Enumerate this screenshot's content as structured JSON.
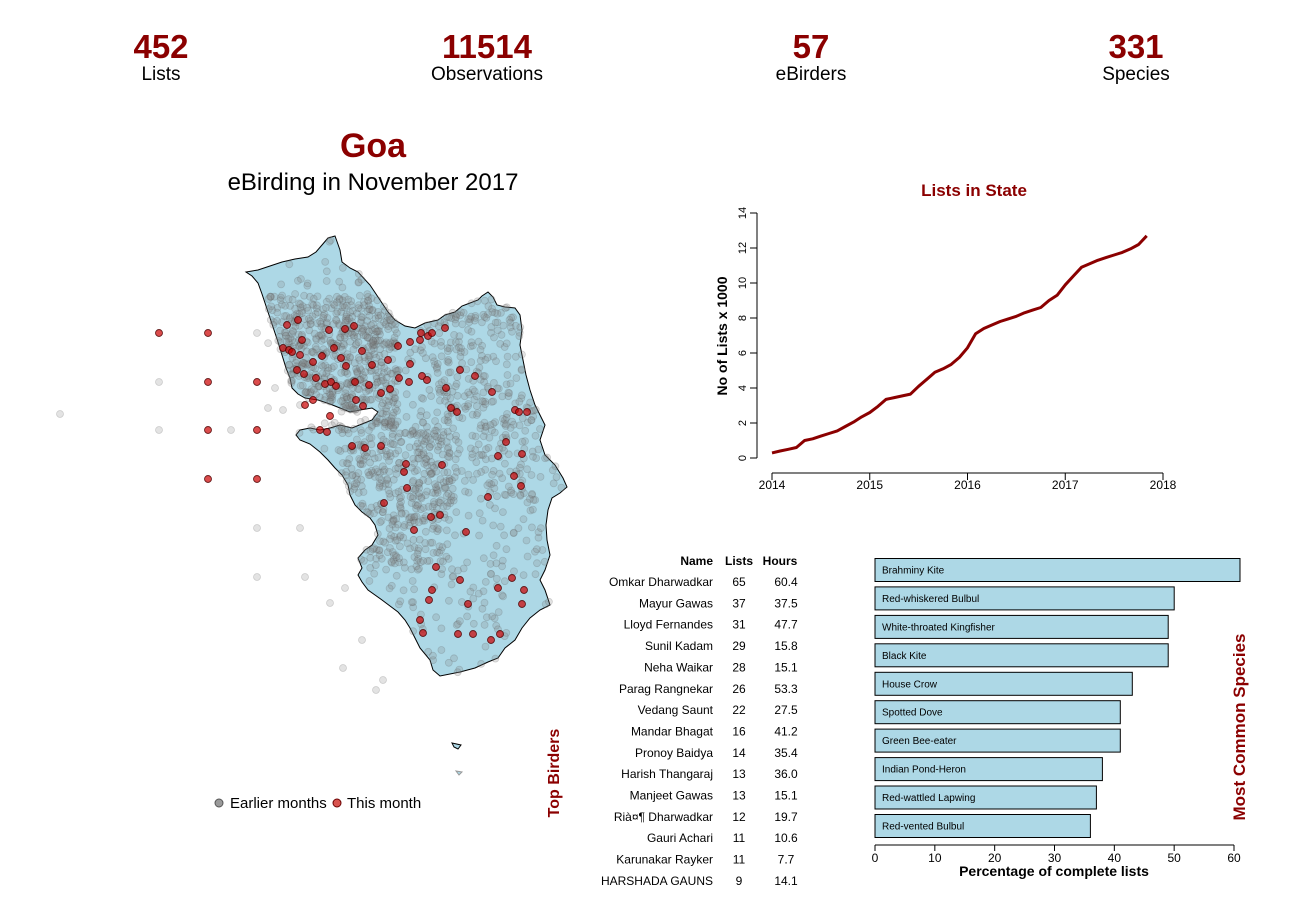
{
  "stats": [
    {
      "value": "452",
      "label": "Lists"
    },
    {
      "value": "11514",
      "label": "Observations"
    },
    {
      "value": "57",
      "label": "eBirders"
    },
    {
      "value": "331",
      "label": "Species"
    }
  ],
  "header": {
    "title": "Goa",
    "subtitle": "eBirding in November 2017"
  },
  "map": {
    "land_color": "#add8e6",
    "legend": [
      {
        "label": "Earlier months",
        "color": "#9a9a9a"
      },
      {
        "label": "This month",
        "color": "#d9534f"
      }
    ]
  },
  "colors": {
    "accent": "#8b0000",
    "bar_fill": "#add8e6",
    "earlier_points": "#808080",
    "this_month_points": "#cc0000"
  },
  "chart_data": [
    {
      "type": "line",
      "title": "Lists in State",
      "xlabel": "",
      "ylabel": "No of Lists x 1000",
      "x": [
        "2014-01",
        "2014-02",
        "2014-03",
        "2014-04",
        "2014-05",
        "2014-06",
        "2014-07",
        "2014-08",
        "2014-09",
        "2014-10",
        "2014-11",
        "2014-12",
        "2015-01",
        "2015-02",
        "2015-03",
        "2015-04",
        "2015-05",
        "2015-06",
        "2015-07",
        "2015-08",
        "2015-09",
        "2015-10",
        "2015-11",
        "2015-12",
        "2016-01",
        "2016-02",
        "2016-03",
        "2016-04",
        "2016-05",
        "2016-06",
        "2016-07",
        "2016-08",
        "2016-09",
        "2016-10",
        "2016-11",
        "2016-12",
        "2017-01",
        "2017-02",
        "2017-03",
        "2017-04",
        "2017-05",
        "2017-06",
        "2017-07",
        "2017-08",
        "2017-09",
        "2017-10",
        "2017-11"
      ],
      "y": [
        0.29,
        0.4,
        0.5,
        0.6,
        1.0,
        1.1,
        1.25,
        1.4,
        1.55,
        1.8,
        2.05,
        2.35,
        2.6,
        2.95,
        3.35,
        3.45,
        3.55,
        3.65,
        4.1,
        4.5,
        4.9,
        5.1,
        5.35,
        5.75,
        6.3,
        7.1,
        7.4,
        7.6,
        7.8,
        7.95,
        8.1,
        8.3,
        8.45,
        8.6,
        9.0,
        9.3,
        9.9,
        10.4,
        10.9,
        11.1,
        11.3,
        11.45,
        11.6,
        11.75,
        11.95,
        12.2,
        12.7
      ],
      "xticks": [
        "2014",
        "2015",
        "2016",
        "2017",
        "2018"
      ],
      "yticks": [
        "0",
        "2",
        "4",
        "6",
        "8",
        "10",
        "12",
        "14"
      ],
      "xlim": [
        "2014",
        "2018"
      ],
      "ylim": [
        0,
        14
      ],
      "grid": false,
      "color": "#8b0000"
    },
    {
      "type": "bar",
      "orientation": "horizontal",
      "title": "Most Common Species",
      "xlabel": "Percentage of complete lists",
      "ylabel": "",
      "categories": [
        "Brahminy Kite",
        "Red-whiskered Bulbul",
        "White-throated Kingfisher",
        "Black Kite",
        "House Crow",
        "Spotted Dove",
        "Green Bee-eater",
        "Indian Pond-Heron",
        "Red-wattled Lapwing",
        "Red-vented Bulbul"
      ],
      "values": [
        61,
        50,
        49,
        49,
        43,
        41,
        41,
        38,
        37,
        36
      ],
      "xticks": [
        "0",
        "10",
        "20",
        "30",
        "40",
        "50",
        "60"
      ],
      "xlim": [
        0,
        60
      ],
      "grid": false,
      "color": "#add8e6"
    },
    {
      "type": "table",
      "title": "Top Birders",
      "columns": [
        "Name",
        "Lists",
        "Hours"
      ],
      "rows": [
        [
          "Omkar Dharwadkar",
          "65",
          "60.4"
        ],
        [
          "Mayur Gawas",
          "37",
          "37.5"
        ],
        [
          "Lloyd Fernandes",
          "31",
          "47.7"
        ],
        [
          "Sunil Kadam",
          "29",
          "15.8"
        ],
        [
          "Neha Waikar",
          "28",
          "15.1"
        ],
        [
          "Parag Rangnekar",
          "26",
          "53.3"
        ],
        [
          "Vedang Saunt",
          "22",
          "27.5"
        ],
        [
          "Mandar  Bhagat",
          "16",
          "41.2"
        ],
        [
          "Pronoy Baidya",
          "14",
          "35.4"
        ],
        [
          "Harish Thangaraj",
          "13",
          "36.0"
        ],
        [
          "Manjeet  Gawas",
          "13",
          "15.1"
        ],
        [
          "Rià¤¶ Dharwadkar",
          "12",
          "19.7"
        ],
        [
          "Gauri Achari",
          "11",
          "10.6"
        ],
        [
          "Karunakar  Rayker",
          "11",
          "7.7"
        ],
        [
          "HARSHADA GAUNS",
          "9",
          "14.1"
        ]
      ]
    }
  ]
}
